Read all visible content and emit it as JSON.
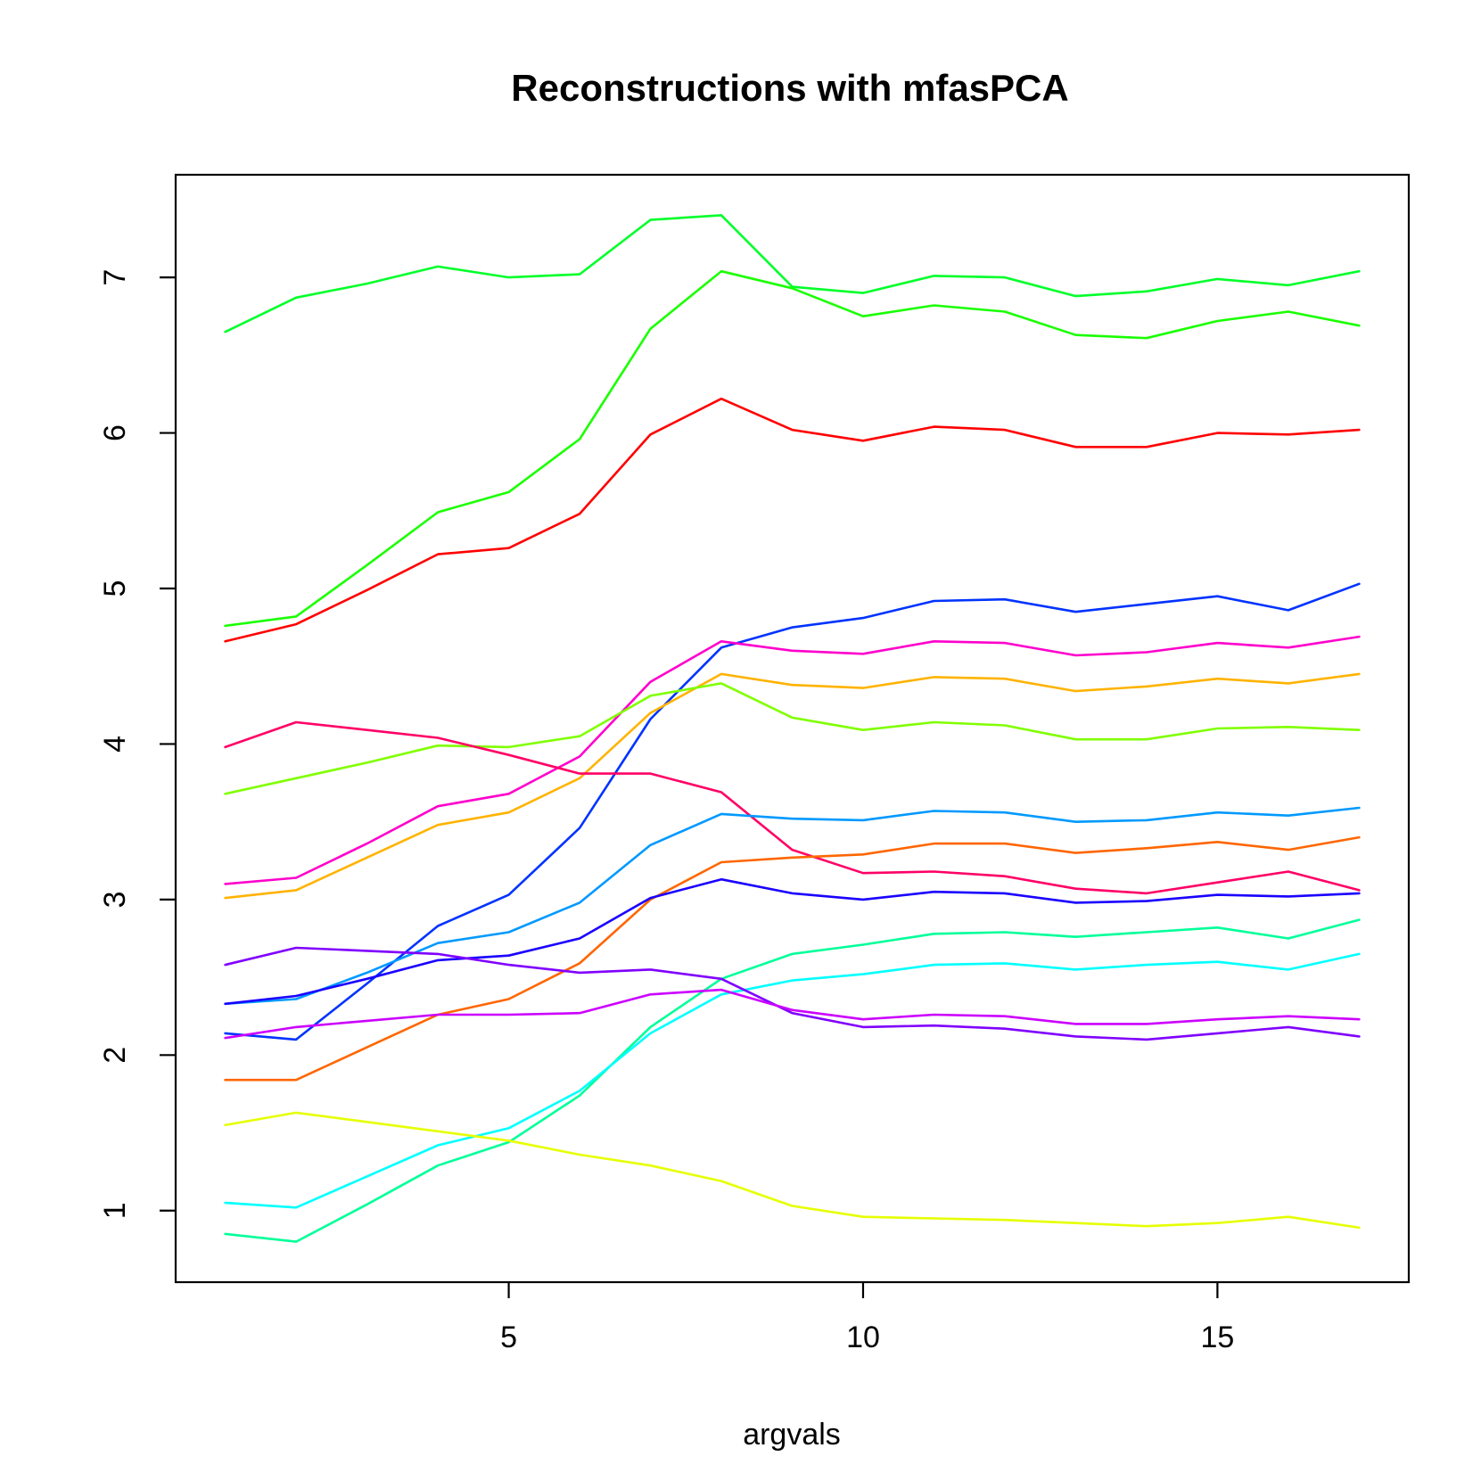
{
  "chart_data": {
    "type": "line",
    "title": "Reconstructions with mfasPCA",
    "xlabel": "argvals",
    "ylabel": "",
    "xlim": [
      0.3,
      17.7
    ],
    "ylim": [
      0.54,
      7.66
    ],
    "x_ticks": [
      5,
      10,
      15
    ],
    "y_ticks": [
      1,
      2,
      3,
      4,
      5,
      6,
      7
    ],
    "grid": false,
    "x": [
      1,
      2,
      3,
      4,
      5,
      6,
      7,
      8,
      9,
      10,
      11,
      12,
      13,
      14,
      15,
      16,
      17
    ],
    "series": [
      {
        "color": "#00ff2a",
        "values": [
          6.65,
          6.87,
          6.96,
          7.07,
          7.0,
          7.02,
          7.37,
          7.4,
          6.94,
          6.9,
          7.01,
          7.0,
          6.88,
          6.91,
          6.99,
          6.95,
          7.04
        ]
      },
      {
        "color": "#1aff00",
        "values": [
          4.76,
          4.82,
          5.15,
          5.49,
          5.62,
          5.96,
          6.67,
          7.04,
          6.93,
          6.75,
          6.82,
          6.78,
          6.63,
          6.61,
          6.72,
          6.78,
          6.69
        ]
      },
      {
        "color": "#ff0000",
        "values": [
          4.66,
          4.77,
          4.99,
          5.22,
          5.26,
          5.48,
          5.99,
          6.22,
          6.02,
          5.95,
          6.04,
          6.02,
          5.91,
          5.91,
          6.0,
          5.99,
          6.02
        ]
      },
      {
        "color": "#0033ff",
        "values": [
          2.14,
          2.1,
          2.46,
          2.83,
          3.03,
          3.46,
          4.16,
          4.62,
          4.75,
          4.81,
          4.92,
          4.93,
          4.85,
          4.9,
          4.95,
          4.86,
          5.03
        ]
      },
      {
        "color": "#ff00cc",
        "values": [
          3.1,
          3.14,
          3.36,
          3.6,
          3.68,
          3.92,
          4.4,
          4.66,
          4.6,
          4.58,
          4.66,
          4.65,
          4.57,
          4.59,
          4.65,
          4.62,
          4.69
        ]
      },
      {
        "color": "#ffb300",
        "values": [
          3.01,
          3.06,
          3.27,
          3.48,
          3.56,
          3.78,
          4.2,
          4.45,
          4.38,
          4.36,
          4.43,
          4.42,
          4.34,
          4.37,
          4.42,
          4.39,
          4.45
        ]
      },
      {
        "color": "#80ff00",
        "values": [
          3.68,
          3.78,
          3.88,
          3.99,
          3.98,
          4.05,
          4.31,
          4.39,
          4.17,
          4.09,
          4.14,
          4.12,
          4.03,
          4.03,
          4.1,
          4.11,
          4.09
        ]
      },
      {
        "color": "#ff0066",
        "values": [
          3.98,
          4.14,
          4.09,
          4.04,
          3.93,
          3.81,
          3.81,
          3.69,
          3.32,
          3.17,
          3.18,
          3.15,
          3.07,
          3.04,
          3.11,
          3.18,
          3.06
        ]
      },
      {
        "color": "#0099ff",
        "values": [
          2.33,
          2.36,
          2.53,
          2.72,
          2.79,
          2.98,
          3.35,
          3.55,
          3.52,
          3.51,
          3.57,
          3.56,
          3.5,
          3.51,
          3.56,
          3.54,
          3.59
        ]
      },
      {
        "color": "#ff6600",
        "values": [
          1.84,
          1.84,
          2.05,
          2.26,
          2.36,
          2.59,
          3.0,
          3.24,
          3.27,
          3.29,
          3.36,
          3.36,
          3.3,
          3.33,
          3.37,
          3.32,
          3.4
        ]
      },
      {
        "color": "#1a00ff",
        "values": [
          2.33,
          2.38,
          2.49,
          2.61,
          2.64,
          2.75,
          3.01,
          3.13,
          3.04,
          3.0,
          3.05,
          3.04,
          2.98,
          2.99,
          3.03,
          3.02,
          3.04
        ]
      },
      {
        "color": "#00ff99",
        "values": [
          0.85,
          0.8,
          1.04,
          1.29,
          1.44,
          1.74,
          2.18,
          2.49,
          2.65,
          2.71,
          2.78,
          2.79,
          2.76,
          2.79,
          2.82,
          2.75,
          2.87
        ]
      },
      {
        "color": "#00ffff",
        "values": [
          1.05,
          1.02,
          1.22,
          1.42,
          1.53,
          1.77,
          2.14,
          2.39,
          2.48,
          2.52,
          2.58,
          2.59,
          2.55,
          2.58,
          2.6,
          2.55,
          2.65
        ]
      },
      {
        "color": "#8000ff",
        "values": [
          2.58,
          2.69,
          2.67,
          2.65,
          2.58,
          2.53,
          2.55,
          2.49,
          2.27,
          2.18,
          2.19,
          2.17,
          2.12,
          2.1,
          2.14,
          2.18,
          2.12
        ]
      },
      {
        "color": "#cc00ff",
        "values": [
          2.11,
          2.18,
          2.22,
          2.26,
          2.26,
          2.27,
          2.39,
          2.42,
          2.29,
          2.23,
          2.26,
          2.25,
          2.2,
          2.2,
          2.23,
          2.25,
          2.23
        ]
      },
      {
        "color": "#e6ff00",
        "values": [
          1.55,
          1.63,
          1.57,
          1.51,
          1.45,
          1.36,
          1.29,
          1.19,
          1.03,
          0.96,
          0.95,
          0.94,
          0.92,
          0.9,
          0.92,
          0.96,
          0.89
        ]
      }
    ]
  }
}
